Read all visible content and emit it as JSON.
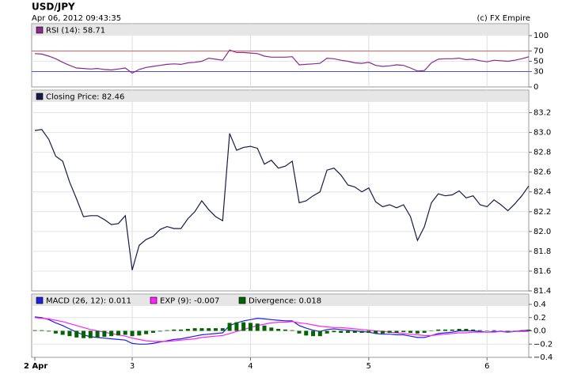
{
  "header": {
    "title": "USD/JPY",
    "timestamp": "Apr 06, 2012 09:43:35",
    "credit": "(c) FX Empire"
  },
  "chart_data": [
    {
      "type": "line",
      "series": [
        {
          "name": "RSI (14): 58.71",
          "color": "#8b2a8b",
          "values": [
            65,
            64,
            60,
            55,
            48,
            42,
            37,
            36,
            35,
            36,
            34,
            33,
            35,
            37,
            27,
            34,
            38,
            40,
            42,
            44,
            45,
            44,
            47,
            48,
            50,
            56,
            54,
            52,
            72,
            67,
            67,
            66,
            65,
            60,
            58,
            58,
            58,
            59,
            43,
            44,
            45,
            46,
            56,
            55,
            52,
            50,
            47,
            46,
            48,
            42,
            40,
            41,
            43,
            42,
            37,
            31,
            32,
            47,
            54,
            55,
            55,
            56,
            53,
            54,
            51,
            49,
            52,
            51,
            50,
            52,
            55,
            58.71
          ]
        }
      ],
      "ylim": [
        0,
        100
      ],
      "yticks": [
        0,
        30,
        50,
        70,
        100
      ],
      "ref_lines": [
        {
          "value": 70,
          "color": "#e06060"
        },
        {
          "value": 30,
          "color": "#5050e0"
        }
      ],
      "grid": true
    },
    {
      "type": "line",
      "series": [
        {
          "name": "Closing Price: 82.46",
          "color": "#1a1a4a",
          "values": [
            83.02,
            83.03,
            82.93,
            82.76,
            82.71,
            82.5,
            82.33,
            82.15,
            82.16,
            82.16,
            82.12,
            82.07,
            82.08,
            82.16,
            81.61,
            81.86,
            81.92,
            81.95,
            82.02,
            82.05,
            82.03,
            82.03,
            82.13,
            82.2,
            82.31,
            82.22,
            82.15,
            82.11,
            82.99,
            82.82,
            82.85,
            82.86,
            82.84,
            82.68,
            82.72,
            82.64,
            82.66,
            82.71,
            82.29,
            82.31,
            82.36,
            82.4,
            82.62,
            82.64,
            82.57,
            82.47,
            82.45,
            82.4,
            82.44,
            82.3,
            82.25,
            82.27,
            82.24,
            82.27,
            82.15,
            81.91,
            82.05,
            82.29,
            82.38,
            82.36,
            82.37,
            82.41,
            82.34,
            82.36,
            82.27,
            82.25,
            82.32,
            82.27,
            82.21,
            82.28,
            82.36,
            82.46
          ]
        }
      ],
      "ylim": [
        81.4,
        83.3
      ],
      "yticks": [
        81.4,
        81.6,
        81.8,
        {
          "value": 82,
          "label": "82.0"
        },
        82.2,
        82.4,
        82.6,
        82.8,
        {
          "value": 83,
          "label": "83.0"
        },
        83.2
      ],
      "grid": true
    },
    {
      "type": "macd",
      "categories": [
        "2 Apr",
        null,
        null,
        null,
        null,
        null,
        null,
        null,
        null,
        null,
        null,
        null,
        null,
        null,
        "3",
        null,
        null,
        null,
        null,
        null,
        null,
        null,
        null,
        null,
        null,
        null,
        null,
        null,
        null,
        null,
        null,
        "4",
        null,
        null,
        null,
        null,
        null,
        null,
        null,
        null,
        null,
        null,
        null,
        null,
        null,
        null,
        null,
        null,
        "5",
        null,
        null,
        null,
        null,
        null,
        null,
        null,
        null,
        null,
        null,
        null,
        null,
        null,
        null,
        null,
        null,
        "6",
        null,
        null,
        null,
        null,
        null,
        null
      ],
      "series": [
        {
          "name": "MACD (26, 12): 0.011",
          "color": "#2020e0",
          "type": "line",
          "values": [
            0.21,
            0.2,
            0.17,
            0.12,
            0.08,
            0.03,
            -0.02,
            -0.06,
            -0.09,
            -0.1,
            -0.11,
            -0.12,
            -0.13,
            -0.14,
            -0.19,
            -0.2,
            -0.2,
            -0.19,
            -0.17,
            -0.15,
            -0.13,
            -0.12,
            -0.1,
            -0.08,
            -0.06,
            -0.05,
            -0.04,
            -0.03,
            0.08,
            0.12,
            0.15,
            0.17,
            0.19,
            0.18,
            0.17,
            0.16,
            0.15,
            0.15,
            0.08,
            0.04,
            0.01,
            -0.01,
            0.02,
            0.03,
            0.02,
            0.01,
            0,
            -0.01,
            -0.02,
            -0.04,
            -0.05,
            -0.05,
            -0.06,
            -0.06,
            -0.08,
            -0.1,
            -0.1,
            -0.07,
            -0.04,
            -0.03,
            -0.02,
            0,
            0,
            0,
            -0.01,
            -0.02,
            -0.01,
            -0.01,
            -0.02,
            -0.01,
            0,
            0.011
          ]
        },
        {
          "name": "EXP (9): -0.007",
          "color": "#ff20ff",
          "type": "line",
          "values": [
            0.2,
            0.19,
            0.18,
            0.16,
            0.14,
            0.11,
            0.08,
            0.05,
            0.02,
            0,
            -0.02,
            -0.04,
            -0.06,
            -0.08,
            -0.11,
            -0.13,
            -0.15,
            -0.16,
            -0.16,
            -0.16,
            -0.15,
            -0.14,
            -0.13,
            -0.12,
            -0.1,
            -0.09,
            -0.08,
            -0.07,
            -0.04,
            -0.01,
            0.02,
            0.05,
            0.08,
            0.1,
            0.12,
            0.13,
            0.13,
            0.14,
            0.12,
            0.11,
            0.09,
            0.07,
            0.06,
            0.05,
            0.05,
            0.04,
            0.03,
            0.02,
            0.01,
            0,
            -0.01,
            -0.02,
            -0.03,
            -0.04,
            -0.05,
            -0.06,
            -0.07,
            -0.07,
            -0.06,
            -0.05,
            -0.04,
            -0.03,
            -0.03,
            -0.02,
            -0.02,
            -0.02,
            -0.02,
            -0.01,
            -0.01,
            -0.01,
            -0.01,
            -0.007
          ]
        },
        {
          "name": "Divergence: 0.018",
          "color": "#006400",
          "type": "bar",
          "values": [
            0.01,
            0.01,
            -0.01,
            -0.04,
            -0.06,
            -0.08,
            -0.1,
            -0.11,
            -0.11,
            -0.1,
            -0.09,
            -0.08,
            -0.07,
            -0.06,
            -0.08,
            -0.07,
            -0.05,
            -0.03,
            -0.01,
            0.01,
            0.02,
            0.02,
            0.03,
            0.04,
            0.04,
            0.04,
            0.04,
            0.04,
            0.12,
            0.13,
            0.13,
            0.12,
            0.11,
            0.08,
            0.05,
            0.03,
            0.02,
            0.01,
            -0.04,
            -0.07,
            -0.08,
            -0.08,
            -0.04,
            -0.02,
            -0.03,
            -0.03,
            -0.03,
            -0.03,
            -0.03,
            -0.04,
            -0.04,
            -0.03,
            -0.03,
            -0.02,
            -0.03,
            -0.04,
            -0.03,
            0,
            0.02,
            0.02,
            0.02,
            0.03,
            0.03,
            0.02,
            0.01,
            0,
            0.01,
            0,
            -0.01,
            0,
            0.01,
            0.018
          ]
        }
      ],
      "ylim": [
        -0.4,
        0.4
      ],
      "yticks": [
        {
          "value": -0.4,
          "label": "−0.4"
        },
        {
          "value": -0.2,
          "label": "−0.2"
        },
        {
          "value": 0,
          "label": "0.0"
        },
        0.2,
        0.4
      ],
      "grid": true
    }
  ]
}
